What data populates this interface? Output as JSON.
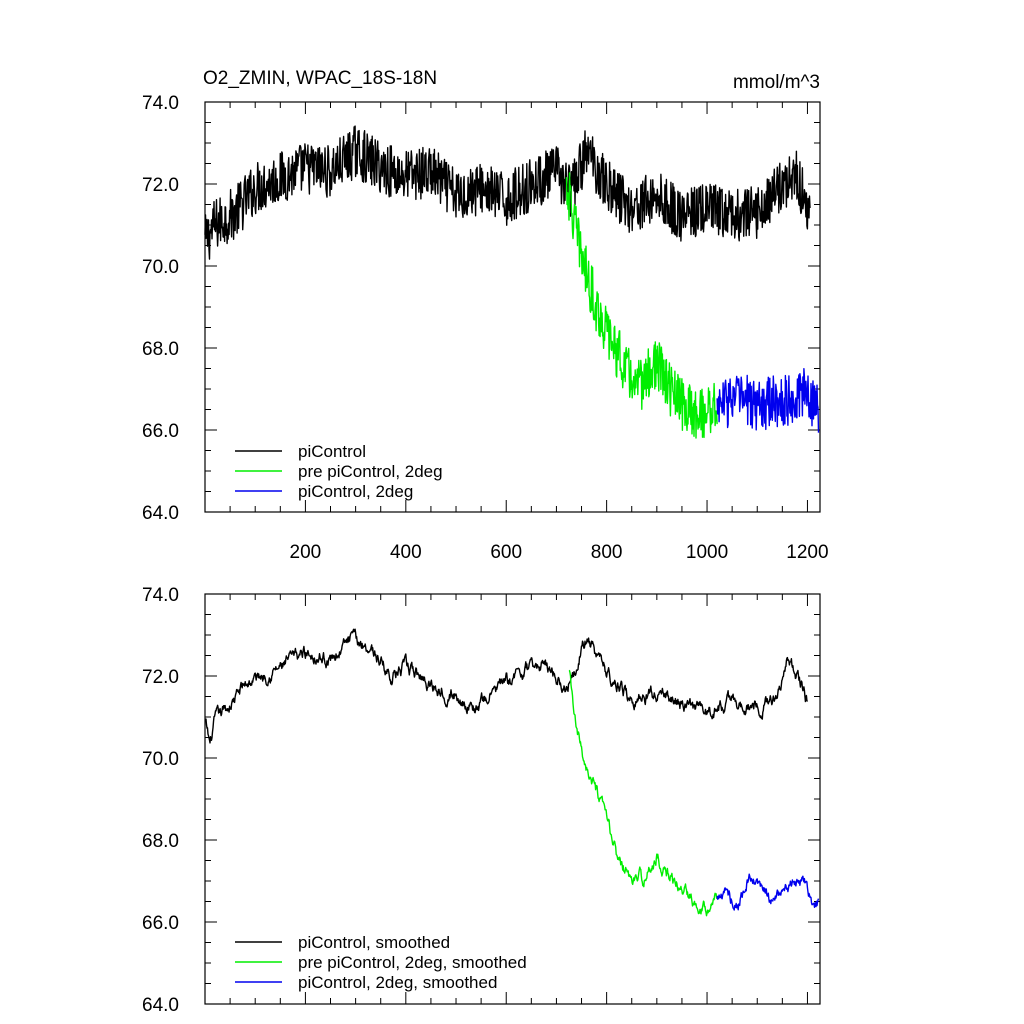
{
  "chart_data": [
    {
      "type": "line",
      "title_left": "O2_ZMIN, WPAC_18S-18N",
      "title_right": "mmol/m^3",
      "ylim": [
        64.0,
        74.0
      ],
      "xlim": [
        0,
        1225
      ],
      "y_tick_labels": [
        "64.0",
        "66.0",
        "68.0",
        "70.0",
        "72.0",
        "74.0"
      ],
      "y_tick_values": [
        64,
        66,
        68,
        70,
        72,
        74
      ],
      "x_tick_labels": [
        "200",
        "400",
        "600",
        "800",
        "1000",
        "1200"
      ],
      "x_tick_values": [
        200,
        400,
        600,
        800,
        1000,
        1200
      ],
      "show_x_labels": true,
      "series": [
        {
          "name": "piControl",
          "color": "#000000",
          "noise": 0.65,
          "x": [
            0,
            20,
            60,
            100,
            160,
            200,
            250,
            300,
            350,
            400,
            450,
            500,
            550,
            600,
            650,
            700,
            730,
            760,
            800,
            850,
            900,
            950,
            1000,
            1050,
            1100,
            1150,
            1180,
            1205
          ],
          "values": [
            70.6,
            71.0,
            71.3,
            71.9,
            72.2,
            72.4,
            72.3,
            72.8,
            72.4,
            72.2,
            72.3,
            71.7,
            71.9,
            71.6,
            72.0,
            72.3,
            71.8,
            72.8,
            72.0,
            71.4,
            71.7,
            71.2,
            71.4,
            71.2,
            71.3,
            72.0,
            72.2,
            71.2
          ]
        },
        {
          "name": "pre piControl, 2deg",
          "color": "#00ee00",
          "noise": 0.65,
          "x": [
            720,
            740,
            760,
            780,
            800,
            830,
            860,
            900,
            930,
            960,
            990,
            1020
          ],
          "values": [
            72.0,
            70.8,
            69.8,
            69.0,
            68.4,
            67.7,
            67.0,
            67.6,
            66.9,
            66.5,
            66.4,
            66.6
          ]
        },
        {
          "name": "piControl, 2deg",
          "color": "#0000ee",
          "noise": 0.65,
          "x": [
            1020,
            1060,
            1100,
            1140,
            1180,
            1200,
            1222
          ],
          "values": [
            66.6,
            66.8,
            66.6,
            66.7,
            66.8,
            66.9,
            66.5
          ]
        }
      ]
    },
    {
      "type": "line",
      "ylim": [
        64.0,
        74.0
      ],
      "xlim": [
        0,
        1225
      ],
      "y_tick_labels": [
        "64.0",
        "66.0",
        "68.0",
        "70.0",
        "72.0",
        "74.0"
      ],
      "y_tick_values": [
        64,
        66,
        68,
        70,
        72,
        74
      ],
      "x_tick_values": [
        200,
        400,
        600,
        800,
        1000,
        1200
      ],
      "show_x_labels": false,
      "series": [
        {
          "name": "piControl, smoothed",
          "color": "#000000",
          "noise": 0.22,
          "x": [
            0,
            10,
            20,
            50,
            80,
            110,
            150,
            200,
            250,
            290,
            330,
            370,
            400,
            450,
            500,
            540,
            580,
            630,
            680,
            720,
            750,
            760,
            800,
            850,
            900,
            950,
            1000,
            1050,
            1100,
            1140,
            1160,
            1190,
            1200
          ],
          "values": [
            70.9,
            70.3,
            70.9,
            71.3,
            71.8,
            72.0,
            72.2,
            72.6,
            72.4,
            72.9,
            72.7,
            72.0,
            72.2,
            71.8,
            71.5,
            71.2,
            71.7,
            72.1,
            72.3,
            71.7,
            72.7,
            72.9,
            72.1,
            71.4,
            71.6,
            71.3,
            71.1,
            71.4,
            71.2,
            71.5,
            72.5,
            71.7,
            71.4
          ]
        },
        {
          "name": "pre piControl, 2deg, smoothed",
          "color": "#00ee00",
          "noise": 0.22,
          "x": [
            725,
            740,
            760,
            780,
            800,
            820,
            850,
            880,
            900,
            920,
            950,
            980,
            1000,
            1020
          ],
          "values": [
            72.1,
            70.6,
            69.8,
            69.1,
            68.5,
            67.6,
            67.0,
            67.1,
            67.6,
            67.2,
            66.8,
            66.5,
            66.4,
            66.6
          ]
        },
        {
          "name": "piControl, 2deg, smoothed",
          "color": "#0000ee",
          "noise": 0.22,
          "x": [
            1020,
            1040,
            1060,
            1080,
            1100,
            1130,
            1160,
            1190,
            1200,
            1210,
            1222
          ],
          "values": [
            66.6,
            66.7,
            66.4,
            67.0,
            66.9,
            66.5,
            66.8,
            67.0,
            66.8,
            66.4,
            66.5
          ]
        }
      ]
    }
  ]
}
